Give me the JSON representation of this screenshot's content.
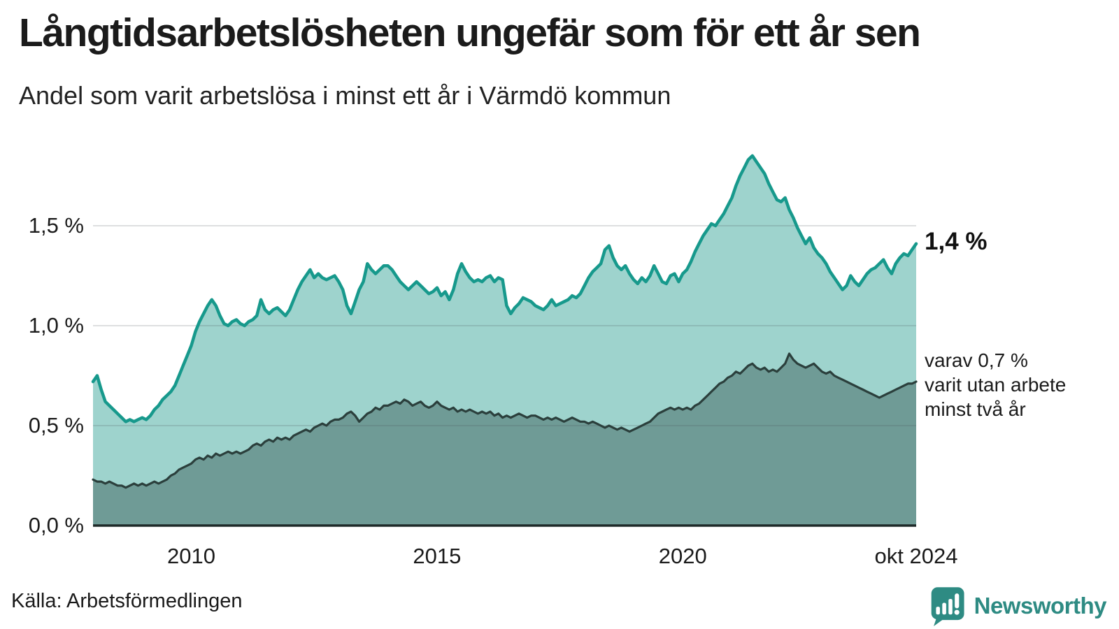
{
  "header": {
    "title": "Långtidsarbetslösheten ungefär som för ett år sen",
    "subtitle": "Andel som varit arbetslösa i minst ett år i Värmdö kommun"
  },
  "footer": {
    "source": "Källa: Arbetsförmedlingen",
    "brand": "Newsworthy"
  },
  "colors": {
    "line_primary": "#17998c",
    "fill_primary": "#9ed3cd",
    "line_secondary": "#2b3f3c",
    "fill_secondary": "#6f9b96",
    "gridline": "rgba(70,80,85,0.18)",
    "baseline": "#1f2b29",
    "brand_teal": "#2e8b83"
  },
  "chart_data": {
    "type": "area",
    "title": "Långtidsarbetslösheten ungefär som för ett år sen",
    "subtitle": "Andel som varit arbetslösa i minst ett år i Värmdö kommun",
    "x_start": "2008-01",
    "x_end": "2024-10",
    "x_frequency": "monthly",
    "grid": true,
    "ylim": [
      0,
      1.95
    ],
    "y_ticks": [
      0,
      0.5,
      1.0,
      1.5
    ],
    "y_tick_labels": [
      "0,0 %",
      "0,5 %",
      "1,0 %",
      "1,5 %"
    ],
    "x_ticks": [
      {
        "label": "2010",
        "month_index": 24
      },
      {
        "label": "2015",
        "month_index": 84
      },
      {
        "label": "2020",
        "month_index": 144
      },
      {
        "label": "okt 2024",
        "month_index": 201
      }
    ],
    "end_label": "1,4 %",
    "secondary_label_lines": [
      "varav 0,7 %",
      "varit utan arbete",
      "minst två år"
    ],
    "series": [
      {
        "name": "Arbetslösa minst ett år",
        "unit": "%",
        "last_value": 1.4,
        "values": [
          0.72,
          0.75,
          0.68,
          0.62,
          0.6,
          0.58,
          0.56,
          0.54,
          0.52,
          0.53,
          0.52,
          0.53,
          0.54,
          0.53,
          0.55,
          0.58,
          0.6,
          0.63,
          0.65,
          0.67,
          0.7,
          0.75,
          0.8,
          0.85,
          0.9,
          0.97,
          1.02,
          1.06,
          1.1,
          1.13,
          1.1,
          1.05,
          1.01,
          1.0,
          1.02,
          1.03,
          1.01,
          1.0,
          1.02,
          1.03,
          1.05,
          1.13,
          1.08,
          1.06,
          1.08,
          1.09,
          1.07,
          1.05,
          1.08,
          1.13,
          1.18,
          1.22,
          1.25,
          1.28,
          1.24,
          1.26,
          1.24,
          1.23,
          1.24,
          1.25,
          1.22,
          1.18,
          1.1,
          1.06,
          1.12,
          1.18,
          1.22,
          1.31,
          1.28,
          1.26,
          1.28,
          1.3,
          1.3,
          1.28,
          1.25,
          1.22,
          1.2,
          1.18,
          1.2,
          1.22,
          1.2,
          1.18,
          1.16,
          1.17,
          1.19,
          1.15,
          1.17,
          1.13,
          1.18,
          1.26,
          1.31,
          1.27,
          1.24,
          1.22,
          1.23,
          1.22,
          1.24,
          1.25,
          1.22,
          1.24,
          1.23,
          1.1,
          1.06,
          1.09,
          1.11,
          1.14,
          1.13,
          1.12,
          1.1,
          1.09,
          1.08,
          1.1,
          1.13,
          1.1,
          1.11,
          1.12,
          1.13,
          1.15,
          1.14,
          1.16,
          1.2,
          1.24,
          1.27,
          1.29,
          1.31,
          1.38,
          1.4,
          1.34,
          1.3,
          1.28,
          1.3,
          1.26,
          1.23,
          1.21,
          1.24,
          1.22,
          1.25,
          1.3,
          1.26,
          1.22,
          1.21,
          1.25,
          1.26,
          1.22,
          1.26,
          1.28,
          1.32,
          1.37,
          1.41,
          1.45,
          1.48,
          1.51,
          1.5,
          1.53,
          1.56,
          1.6,
          1.64,
          1.7,
          1.75,
          1.79,
          1.83,
          1.85,
          1.82,
          1.79,
          1.76,
          1.71,
          1.67,
          1.63,
          1.62,
          1.64,
          1.58,
          1.54,
          1.49,
          1.45,
          1.41,
          1.44,
          1.39,
          1.36,
          1.34,
          1.31,
          1.27,
          1.24,
          1.21,
          1.18,
          1.2,
          1.25,
          1.22,
          1.2,
          1.23,
          1.26,
          1.28,
          1.29,
          1.31,
          1.33,
          1.29,
          1.26,
          1.31,
          1.34,
          1.36,
          1.35,
          1.38,
          1.41
        ]
      },
      {
        "name": "varav utan arbete minst två år",
        "unit": "%",
        "last_value": 0.7,
        "values": [
          0.23,
          0.22,
          0.22,
          0.21,
          0.22,
          0.21,
          0.2,
          0.2,
          0.19,
          0.2,
          0.21,
          0.2,
          0.21,
          0.2,
          0.21,
          0.22,
          0.21,
          0.22,
          0.23,
          0.25,
          0.26,
          0.28,
          0.29,
          0.3,
          0.31,
          0.33,
          0.34,
          0.33,
          0.35,
          0.34,
          0.36,
          0.35,
          0.36,
          0.37,
          0.36,
          0.37,
          0.36,
          0.37,
          0.38,
          0.4,
          0.41,
          0.4,
          0.42,
          0.43,
          0.42,
          0.44,
          0.43,
          0.44,
          0.43,
          0.45,
          0.46,
          0.47,
          0.48,
          0.47,
          0.49,
          0.5,
          0.51,
          0.5,
          0.52,
          0.53,
          0.53,
          0.54,
          0.56,
          0.57,
          0.55,
          0.52,
          0.54,
          0.56,
          0.57,
          0.59,
          0.58,
          0.6,
          0.6,
          0.61,
          0.62,
          0.61,
          0.63,
          0.62,
          0.6,
          0.61,
          0.62,
          0.6,
          0.59,
          0.6,
          0.62,
          0.6,
          0.59,
          0.58,
          0.59,
          0.57,
          0.58,
          0.57,
          0.58,
          0.57,
          0.56,
          0.57,
          0.56,
          0.57,
          0.55,
          0.56,
          0.54,
          0.55,
          0.54,
          0.55,
          0.56,
          0.55,
          0.54,
          0.55,
          0.55,
          0.54,
          0.53,
          0.54,
          0.53,
          0.54,
          0.53,
          0.52,
          0.53,
          0.54,
          0.53,
          0.52,
          0.52,
          0.51,
          0.52,
          0.51,
          0.5,
          0.49,
          0.5,
          0.49,
          0.48,
          0.49,
          0.48,
          0.47,
          0.48,
          0.49,
          0.5,
          0.51,
          0.52,
          0.54,
          0.56,
          0.57,
          0.58,
          0.59,
          0.58,
          0.59,
          0.58,
          0.59,
          0.58,
          0.6,
          0.61,
          0.63,
          0.65,
          0.67,
          0.69,
          0.71,
          0.72,
          0.74,
          0.75,
          0.77,
          0.76,
          0.78,
          0.8,
          0.81,
          0.79,
          0.78,
          0.79,
          0.77,
          0.78,
          0.77,
          0.79,
          0.81,
          0.86,
          0.83,
          0.81,
          0.8,
          0.79,
          0.8,
          0.81,
          0.79,
          0.77,
          0.76,
          0.77,
          0.75,
          0.74,
          0.73,
          0.72,
          0.71,
          0.7,
          0.69,
          0.68,
          0.67,
          0.66,
          0.65,
          0.64,
          0.65,
          0.66,
          0.67,
          0.68,
          0.69,
          0.7,
          0.71,
          0.71,
          0.72
        ]
      }
    ]
  }
}
